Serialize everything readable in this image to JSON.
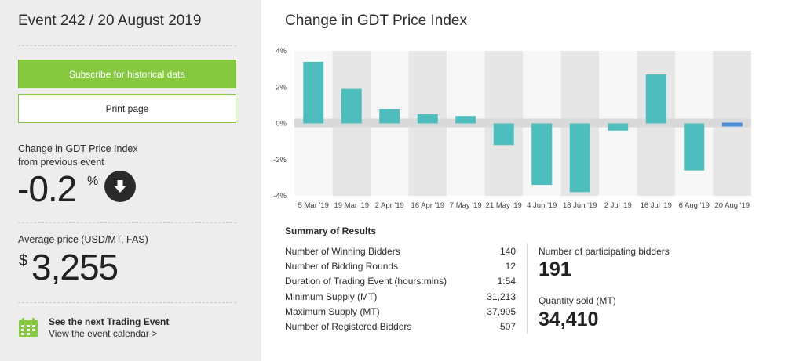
{
  "event": {
    "title": "Event 242 / 20 August 2019"
  },
  "buttons": {
    "subscribe": "Subscribe for historical data",
    "print": "Print page"
  },
  "change": {
    "label_line1": "Change in GDT Price Index",
    "label_line2": "from previous event",
    "value": "-0.2",
    "unit": "%",
    "direction_icon": "down-arrow-icon"
  },
  "average": {
    "label": "Average price (USD/MT, FAS)",
    "currency": "$",
    "value": "3,255"
  },
  "next_event": {
    "title": "See the next Trading Event",
    "link": "View the event calendar >",
    "icon": "calendar-icon"
  },
  "chart_title": "Change in GDT Price Index",
  "chart_data": {
    "type": "bar",
    "categories": [
      "5 Mar '19",
      "19 Mar '19",
      "2 Apr '19",
      "16 Apr '19",
      "7 May '19",
      "21 May '19",
      "4 Jun '19",
      "18 Jun '19",
      "2 Jul '19",
      "16 Jul '19",
      "6 Aug '19",
      "20 Aug '19"
    ],
    "values": [
      3.4,
      1.9,
      0.8,
      0.5,
      0.4,
      -1.2,
      -3.4,
      -3.8,
      -0.4,
      2.7,
      -2.6,
      -0.2
    ],
    "ylim": [
      -4,
      4
    ],
    "yticks": [
      4,
      2,
      0,
      -2,
      -4
    ],
    "ytick_labels": [
      "4%",
      "2%",
      "0%",
      "-2%",
      "-4%"
    ],
    "colors": {
      "bar": "#4dbdbd",
      "latest_bar": "#4a90d9",
      "band_light": "#f7f7f7",
      "band_dark": "#e6e6e6",
      "zero_band": "#d9d9d9"
    },
    "grid": true
  },
  "summary": {
    "title": "Summary of Results",
    "rows": [
      {
        "label": "Number of Winning Bidders",
        "value": "140"
      },
      {
        "label": "Number of Bidding Rounds",
        "value": "12"
      },
      {
        "label": "Duration of Trading Event (hours:mins)",
        "value": "1:54"
      },
      {
        "label": "Minimum Supply (MT)",
        "value": "31,213"
      },
      {
        "label": "Maximum Supply (MT)",
        "value": "37,905"
      },
      {
        "label": "Number of Registered Bidders",
        "value": "507"
      }
    ],
    "participating_label": "Number of participating bidders",
    "participating_value": "191",
    "quantity_label": "Quantity sold (MT)",
    "quantity_value": "34,410"
  }
}
